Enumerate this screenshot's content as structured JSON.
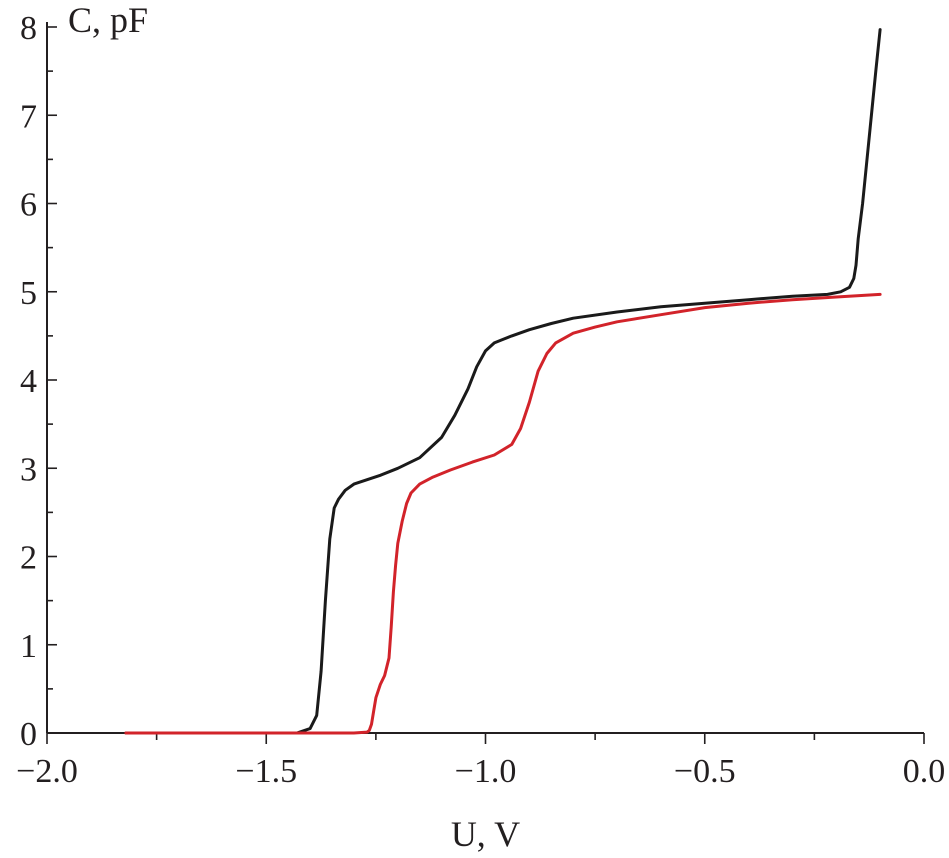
{
  "chart_data": {
    "type": "line",
    "xlabel": "U, V",
    "ylabel": "C, pF",
    "xlim": [
      -2.0,
      0.0
    ],
    "ylim": [
      0,
      8
    ],
    "x_ticks": [
      "−2.0",
      "−1.5",
      "−1.0",
      "−0.5",
      "0.0"
    ],
    "x_tick_values": [
      -2.0,
      -1.5,
      -1.0,
      -0.5,
      0.0
    ],
    "y_ticks": [
      "0",
      "1",
      "2",
      "3",
      "4",
      "5",
      "6",
      "7",
      "8"
    ],
    "y_tick_values": [
      0,
      1,
      2,
      3,
      4,
      5,
      6,
      7,
      8
    ],
    "grid": false,
    "legend": "none",
    "series": [
      {
        "color": "#1a1a1a",
        "x": [
          -1.82,
          -1.6,
          -1.5,
          -1.43,
          -1.4,
          -1.385,
          -1.375,
          -1.365,
          -1.355,
          -1.345,
          -1.335,
          -1.32,
          -1.3,
          -1.27,
          -1.24,
          -1.2,
          -1.15,
          -1.1,
          -1.07,
          -1.04,
          -1.02,
          -1.0,
          -0.98,
          -0.96,
          -0.94,
          -0.9,
          -0.85,
          -0.8,
          -0.7,
          -0.6,
          -0.5,
          -0.4,
          -0.3,
          -0.22,
          -0.19,
          -0.17,
          -0.16,
          -0.155,
          -0.15,
          -0.14,
          -0.13,
          -0.12,
          -0.11,
          -0.1
        ],
        "y": [
          0.0,
          0.0,
          0.0,
          0.0,
          0.05,
          0.2,
          0.7,
          1.5,
          2.2,
          2.55,
          2.65,
          2.75,
          2.82,
          2.87,
          2.92,
          3.0,
          3.12,
          3.35,
          3.6,
          3.9,
          4.15,
          4.33,
          4.42,
          4.46,
          4.5,
          4.57,
          4.64,
          4.7,
          4.77,
          4.83,
          4.87,
          4.91,
          4.95,
          4.97,
          5.0,
          5.05,
          5.15,
          5.3,
          5.6,
          6.0,
          6.5,
          7.0,
          7.5,
          7.97
        ]
      },
      {
        "color": "#d2232a",
        "x": [
          -1.82,
          -1.6,
          -1.4,
          -1.3,
          -1.27,
          -1.265,
          -1.26,
          -1.255,
          -1.25,
          -1.24,
          -1.23,
          -1.22,
          -1.215,
          -1.21,
          -1.205,
          -1.2,
          -1.19,
          -1.18,
          -1.17,
          -1.15,
          -1.12,
          -1.08,
          -1.03,
          -0.98,
          -0.94,
          -0.92,
          -0.9,
          -0.88,
          -0.86,
          -0.84,
          -0.8,
          -0.75,
          -0.7,
          -0.6,
          -0.5,
          -0.4,
          -0.3,
          -0.2,
          -0.1
        ],
        "y": [
          0.0,
          0.0,
          0.0,
          0.0,
          0.01,
          0.03,
          0.1,
          0.25,
          0.4,
          0.55,
          0.65,
          0.85,
          1.2,
          1.6,
          1.9,
          2.15,
          2.4,
          2.6,
          2.72,
          2.82,
          2.9,
          2.98,
          3.07,
          3.15,
          3.27,
          3.45,
          3.75,
          4.1,
          4.3,
          4.42,
          4.53,
          4.6,
          4.66,
          4.74,
          4.82,
          4.87,
          4.91,
          4.94,
          4.97
        ]
      }
    ]
  }
}
